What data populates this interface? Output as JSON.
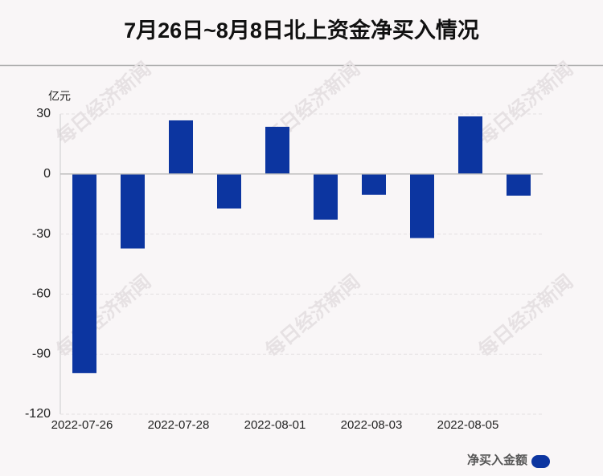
{
  "chart_data": {
    "type": "bar",
    "title": "7月26日~8月8日北上资金净买入情况",
    "y_unit": "亿元",
    "watermark": "每日经济新闻",
    "categories": [
      "2022-07-26",
      null,
      "2022-07-28",
      null,
      "2022-08-01",
      null,
      "2022-08-03",
      null,
      "2022-08-05",
      null
    ],
    "series": [
      {
        "name": "净买入金额",
        "color": "#0c35a0",
        "values": [
          -99.5,
          -37.2,
          26.8,
          -17.2,
          23.6,
          -22.8,
          -10.4,
          -32,
          28.8,
          -10.8
        ]
      }
    ],
    "ylim": [
      -120,
      30
    ],
    "yticks": [
      -120,
      -90,
      -60,
      -30,
      0,
      30
    ],
    "grid": true,
    "legend": "bottom-right"
  }
}
